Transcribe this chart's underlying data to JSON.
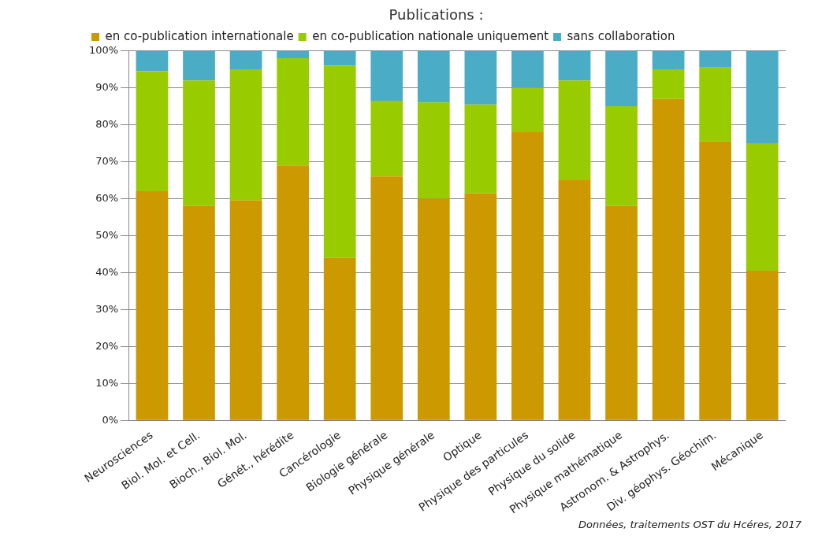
{
  "chart_data": {
    "type": "bar",
    "title": "Publications :",
    "stacked": true,
    "grid": "y",
    "legend": "top",
    "categories": [
      "Neurosciences",
      "Biol. Mol. et Cell.",
      "Bioch., Biol. Mol.",
      "Génét., hérédite",
      "Cancérologie",
      "Biologie générale",
      "Physique générale",
      "Optique",
      "Physique des particules",
      "Physique du solide",
      "Physique mathématique",
      "Astronom. & Astrophys.",
      "Div. géophys. Géochim.",
      "Mécanique"
    ],
    "series": [
      {
        "name": "en co-publication internationale",
        "color": "#cc9900",
        "values": [
          62,
          58,
          59.5,
          69,
          44,
          66,
          60,
          61.5,
          78,
          65,
          58,
          87,
          75.5,
          40.5
        ]
      },
      {
        "name": "en co-publication nationale uniquement",
        "color": "#99cc00",
        "values": [
          32.5,
          34,
          35.5,
          29,
          52,
          20.5,
          26,
          24,
          12,
          27,
          27,
          8,
          20,
          34.5
        ]
      },
      {
        "name": "sans collaboration",
        "color": "#4bacc6",
        "values": [
          5.5,
          8,
          5,
          2,
          4,
          13.5,
          14,
          14.5,
          10,
          8,
          15,
          5,
          4.5,
          25
        ]
      }
    ],
    "ylim": [
      0,
      100
    ],
    "yticks": [
      {
        "value": 0,
        "label": "0%"
      },
      {
        "value": 10,
        "label": "10%"
      },
      {
        "value": 20,
        "label": "20%"
      },
      {
        "value": 30,
        "label": "30%"
      },
      {
        "value": 40,
        "label": "40%"
      },
      {
        "value": 50,
        "label": "50%"
      },
      {
        "value": 60,
        "label": "60%"
      },
      {
        "value": 70,
        "label": "70%"
      },
      {
        "value": 80,
        "label": "80%"
      },
      {
        "value": 90,
        "label": "90%"
      },
      {
        "value": 100,
        "label": "100%"
      }
    ],
    "annotations": [
      "Données, traitements OST du Hcéres, 2017"
    ]
  }
}
